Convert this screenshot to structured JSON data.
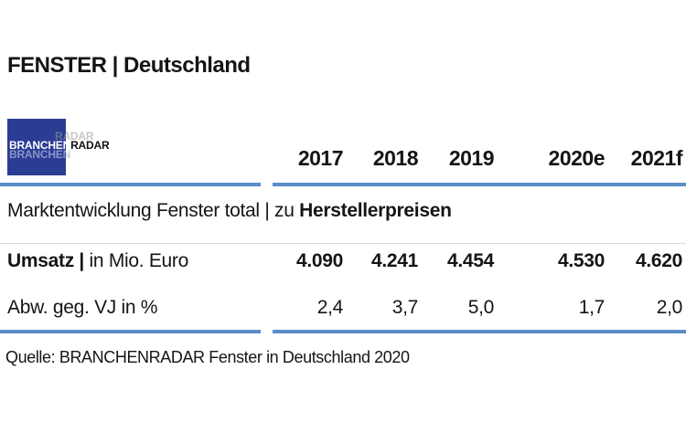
{
  "page": {
    "title": "FENSTER | Deutschland",
    "source": "Quelle: BRANCHENRADAR Fenster in Deutschland 2020"
  },
  "logo": {
    "text_primary": "BRANCHEN",
    "text_secondary": "RADAR",
    "ghost_top": "RADAR",
    "ghost_bottom": "BRANCHEN"
  },
  "table": {
    "years": [
      "2017",
      "2018",
      "2019",
      "2020e",
      "2021f"
    ],
    "section_title_regular": "Marktentwicklung Fenster total | zu ",
    "section_title_bold": "Herstellerpreisen",
    "rows": [
      {
        "label_bold": "Umsatz |",
        "label_regular": " in Mio. Euro",
        "values": [
          "4.090",
          "4.241",
          "4.454",
          "4.530",
          "4.620"
        ]
      },
      {
        "label_bold": "",
        "label_regular": "Abw. geg. VJ in %",
        "values": [
          "2,4",
          "3,7",
          "5,0",
          "1,7",
          "2,0"
        ]
      }
    ]
  },
  "colors": {
    "logo_blue": "#2b3c94",
    "line_blue": "#5b8dc8",
    "text_dark": "#151515"
  },
  "chart_data": {
    "type": "table",
    "title": "FENSTER | Deutschland",
    "section": "Marktentwicklung Fenster total | zu Herstellerpreisen",
    "columns": [
      "2017",
      "2018",
      "2019",
      "2020e",
      "2021f"
    ],
    "rows": [
      {
        "label": "Umsatz | in Mio. Euro",
        "values": [
          4090,
          4241,
          4454,
          4530,
          4620
        ]
      },
      {
        "label": "Abw. geg. VJ in %",
        "values": [
          2.4,
          3.7,
          5.0,
          1.7,
          2.0
        ]
      }
    ],
    "source": "Quelle: BRANCHENRADAR Fenster in Deutschland 2020"
  }
}
